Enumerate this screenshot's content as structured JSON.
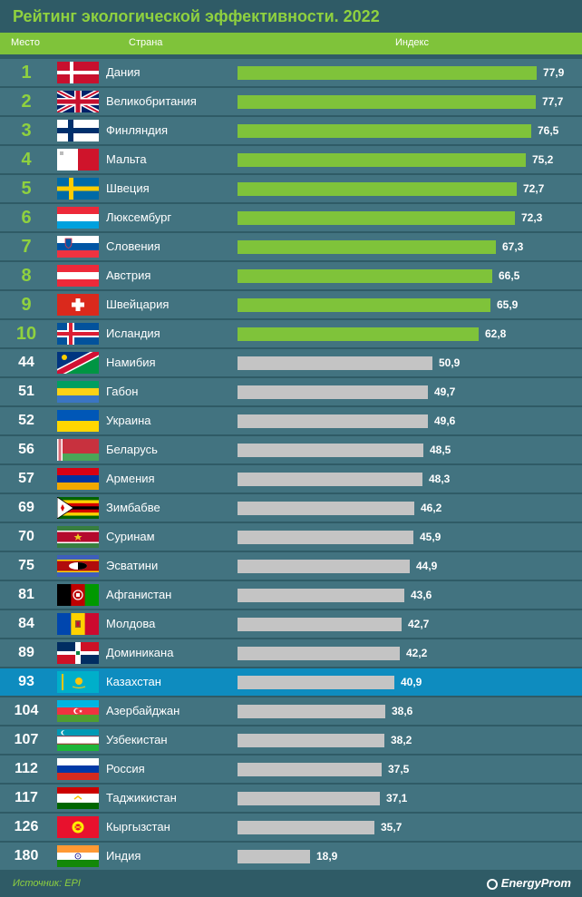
{
  "title": "Рейтинг экологической эффективности. 2022",
  "header": {
    "rank_label": "Место",
    "country_label": "Страна",
    "index_label": "Индекс"
  },
  "footer": {
    "source": "Источник: EPI",
    "brand": "EnergyProm"
  },
  "colors": {
    "background": "#2f5b66",
    "row": "#427380",
    "highlight": "#0e8cbf",
    "top_bar": "#7fc33a",
    "other_bar": "#c4c4c4",
    "accent_text": "#8fd13f"
  },
  "chart_data": {
    "type": "bar",
    "orientation": "horizontal",
    "value_label": "Индекс",
    "xlim": [
      0,
      80
    ],
    "rows": [
      {
        "rank": "1",
        "country": "Дания",
        "value": 77.9,
        "value_label": "77,9",
        "flag": "denmark-flag",
        "top": true
      },
      {
        "rank": "2",
        "country": "Великобритания",
        "value": 77.7,
        "value_label": "77,7",
        "flag": "uk-flag",
        "top": true
      },
      {
        "rank": "3",
        "country": "Финляндия",
        "value": 76.5,
        "value_label": "76,5",
        "flag": "finland-flag",
        "top": true
      },
      {
        "rank": "4",
        "country": "Мальта",
        "value": 75.2,
        "value_label": "75,2",
        "flag": "malta-flag",
        "top": true
      },
      {
        "rank": "5",
        "country": "Швеция",
        "value": 72.7,
        "value_label": "72,7",
        "flag": "sweden-flag",
        "top": true
      },
      {
        "rank": "6",
        "country": "Люксембург",
        "value": 72.3,
        "value_label": "72,3",
        "flag": "luxembourg-flag",
        "top": true
      },
      {
        "rank": "7",
        "country": "Словения",
        "value": 67.3,
        "value_label": "67,3",
        "flag": "slovenia-flag",
        "top": true
      },
      {
        "rank": "8",
        "country": "Австрия",
        "value": 66.5,
        "value_label": "66,5",
        "flag": "austria-flag",
        "top": true
      },
      {
        "rank": "9",
        "country": "Швейцария",
        "value": 65.9,
        "value_label": "65,9",
        "flag": "switzerland-flag",
        "top": true
      },
      {
        "rank": "10",
        "country": "Исландия",
        "value": 62.8,
        "value_label": "62,8",
        "flag": "iceland-flag",
        "top": true
      },
      {
        "rank": "44",
        "country": "Намибия",
        "value": 50.9,
        "value_label": "50,9",
        "flag": "namibia-flag"
      },
      {
        "rank": "51",
        "country": "Габон",
        "value": 49.7,
        "value_label": "49,7",
        "flag": "gabon-flag"
      },
      {
        "rank": "52",
        "country": "Украина",
        "value": 49.6,
        "value_label": "49,6",
        "flag": "ukraine-flag"
      },
      {
        "rank": "56",
        "country": "Беларусь",
        "value": 48.5,
        "value_label": "48,5",
        "flag": "belarus-flag"
      },
      {
        "rank": "57",
        "country": "Армения",
        "value": 48.3,
        "value_label": "48,3",
        "flag": "armenia-flag"
      },
      {
        "rank": "69",
        "country": "Зимбабве",
        "value": 46.2,
        "value_label": "46,2",
        "flag": "zimbabwe-flag"
      },
      {
        "rank": "70",
        "country": "Суринам",
        "value": 45.9,
        "value_label": "45,9",
        "flag": "suriname-flag"
      },
      {
        "rank": "75",
        "country": "Эсватини",
        "value": 44.9,
        "value_label": "44,9",
        "flag": "eswatini-flag"
      },
      {
        "rank": "81",
        "country": "Афганистан",
        "value": 43.6,
        "value_label": "43,6",
        "flag": "afghanistan-flag"
      },
      {
        "rank": "84",
        "country": "Молдова",
        "value": 42.7,
        "value_label": "42,7",
        "flag": "moldova-flag"
      },
      {
        "rank": "89",
        "country": "Доминикана",
        "value": 42.2,
        "value_label": "42,2",
        "flag": "dominican-republic-flag"
      },
      {
        "rank": "93",
        "country": "Казахстан",
        "value": 40.9,
        "value_label": "40,9",
        "flag": "kazakhstan-flag",
        "highlight": true
      },
      {
        "rank": "104",
        "country": "Азербайджан",
        "value": 38.6,
        "value_label": "38,6",
        "flag": "azerbaijan-flag"
      },
      {
        "rank": "107",
        "country": "Узбекистан",
        "value": 38.2,
        "value_label": "38,2",
        "flag": "uzbekistan-flag"
      },
      {
        "rank": "112",
        "country": "Россия",
        "value": 37.5,
        "value_label": "37,5",
        "flag": "russia-flag"
      },
      {
        "rank": "117",
        "country": "Таджикистан",
        "value": 37.1,
        "value_label": "37,1",
        "flag": "tajikistan-flag"
      },
      {
        "rank": "126",
        "country": "Кыргызстан",
        "value": 35.7,
        "value_label": "35,7",
        "flag": "kyrgyzstan-flag"
      },
      {
        "rank": "180",
        "country": "Индия",
        "value": 18.9,
        "value_label": "18,9",
        "flag": "india-flag"
      }
    ]
  }
}
